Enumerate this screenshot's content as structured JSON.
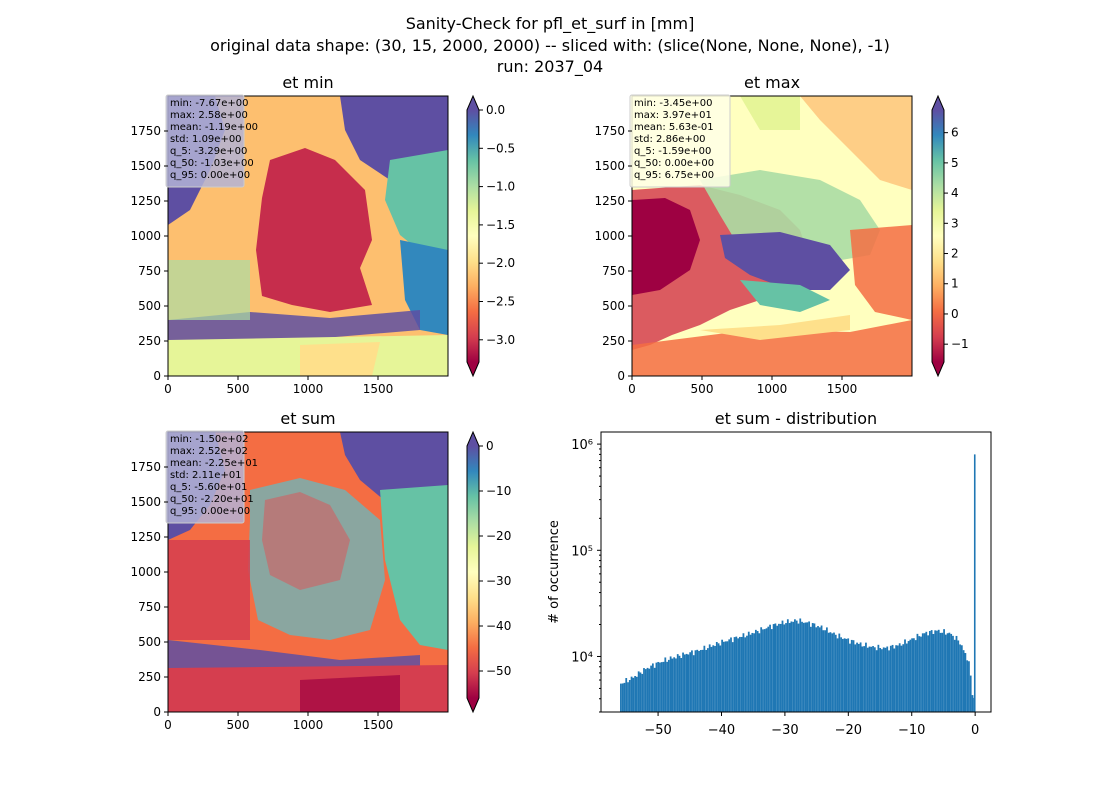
{
  "figure": {
    "title_lines": [
      "Sanity-Check for pfl_et_surf in [mm]",
      "original data shape: (30, 15, 2000, 2000) -- sliced with: (slice(None, None, None), -1)",
      "run: 2037_04"
    ]
  },
  "chart_data": [
    {
      "type": "heatmap",
      "title": "et min",
      "xlim": [
        0,
        2000
      ],
      "ylim": [
        0,
        2000
      ],
      "xticks": [
        0,
        500,
        1000,
        1500
      ],
      "yticks": [
        0,
        250,
        500,
        750,
        1000,
        1250,
        1500,
        1750
      ],
      "colormap": "Spectral",
      "colorbar_range": [
        -3.29,
        0.0
      ],
      "colorbar_ticks": [
        "0.0",
        "−0.5",
        "−1.0",
        "−1.5",
        "−2.0",
        "−2.5",
        "−3.0"
      ],
      "colorbar_tick_values": [
        0.0,
        -0.5,
        -1.0,
        -1.5,
        -2.0,
        -2.5,
        -3.0
      ],
      "stats": [
        "min: -7.67e+00",
        "max: 2.58e+00",
        "mean: -1.19e+00",
        "std: 1.09e+00",
        "q_5: -3.29e+00",
        "q_50: -1.03e+00",
        "q_95: 0.00e+00"
      ]
    },
    {
      "type": "heatmap",
      "title": "et max",
      "xlim": [
        0,
        2000
      ],
      "ylim": [
        0,
        2000
      ],
      "xticks": [
        0,
        500,
        1000,
        1500
      ],
      "yticks": [
        0,
        250,
        500,
        750,
        1000,
        1250,
        1500,
        1750
      ],
      "colormap": "Spectral",
      "colorbar_range": [
        -1.59,
        6.75
      ],
      "colorbar_ticks": [
        "6",
        "5",
        "4",
        "3",
        "2",
        "1",
        "0",
        "−1"
      ],
      "colorbar_tick_values": [
        6,
        5,
        4,
        3,
        2,
        1,
        0,
        -1
      ],
      "stats": [
        "min: -3.45e+00",
        "max: 3.97e+01",
        "mean: 5.63e-01",
        "std: 2.86e+00",
        "q_5: -1.59e+00",
        "q_50: 0.00e+00",
        "q_95: 6.75e+00"
      ]
    },
    {
      "type": "heatmap",
      "title": "et sum",
      "xlim": [
        0,
        2000
      ],
      "ylim": [
        0,
        2000
      ],
      "xticks": [
        0,
        500,
        1000,
        1500
      ],
      "yticks": [
        0,
        250,
        500,
        750,
        1000,
        1250,
        1500,
        1750
      ],
      "colormap": "Spectral",
      "colorbar_range": [
        -56.0,
        0.0
      ],
      "colorbar_ticks": [
        "0",
        "−10",
        "−20",
        "−30",
        "−40",
        "−50"
      ],
      "colorbar_tick_values": [
        0,
        -10,
        -20,
        -30,
        -40,
        -50
      ],
      "stats": [
        "min: -1.50e+02",
        "max: 2.52e+02",
        "mean: -2.25e+01",
        "std: 2.11e+01",
        "q_5: -5.60e+01",
        "q_50: -2.20e+01",
        "q_95: 0.00e+00"
      ]
    },
    {
      "type": "bar",
      "title": "et sum - distribution",
      "xlabel": "",
      "ylabel": "# of occurrence",
      "yscale": "log",
      "xlim": [
        -59,
        2.5
      ],
      "ylim": [
        3000,
        1300000
      ],
      "xticks": [
        -50,
        -40,
        -30,
        -20,
        -10,
        0
      ],
      "xtick_labels": [
        "−50",
        "−40",
        "−30",
        "−20",
        "−10",
        "0"
      ],
      "yticks": [
        10000,
        100000,
        1000000
      ],
      "ytick_labels": [
        "10⁴",
        "10⁵",
        "10⁶"
      ],
      "bin_range": [
        -56.0,
        0.0
      ],
      "bin_count": 200,
      "profile": [
        {
          "x": -56.0,
          "y": 5500
        },
        {
          "x": -54.0,
          "y": 6300
        },
        {
          "x": -52.0,
          "y": 7600
        },
        {
          "x": -50.0,
          "y": 8700
        },
        {
          "x": -48.0,
          "y": 9600
        },
        {
          "x": -46.0,
          "y": 10400
        },
        {
          "x": -44.0,
          "y": 11200
        },
        {
          "x": -42.0,
          "y": 12300
        },
        {
          "x": -40.0,
          "y": 13600
        },
        {
          "x": -38.0,
          "y": 14800
        },
        {
          "x": -36.0,
          "y": 16000
        },
        {
          "x": -34.0,
          "y": 17600
        },
        {
          "x": -32.0,
          "y": 19500
        },
        {
          "x": -30.0,
          "y": 21000
        },
        {
          "x": -28.0,
          "y": 21800
        },
        {
          "x": -26.0,
          "y": 20500
        },
        {
          "x": -24.0,
          "y": 18500
        },
        {
          "x": -22.0,
          "y": 16000
        },
        {
          "x": -20.0,
          "y": 14300
        },
        {
          "x": -18.0,
          "y": 13000
        },
        {
          "x": -16.0,
          "y": 12200
        },
        {
          "x": -14.0,
          "y": 12000
        },
        {
          "x": -12.0,
          "y": 12800
        },
        {
          "x": -10.0,
          "y": 14500
        },
        {
          "x": -8.0,
          "y": 16500
        },
        {
          "x": -6.0,
          "y": 17500
        },
        {
          "x": -4.0,
          "y": 16500
        },
        {
          "x": -2.5,
          "y": 14000
        },
        {
          "x": -1.0,
          "y": 9000
        },
        {
          "x": -0.3,
          "y": 4000
        }
      ],
      "spike": {
        "x": 0.0,
        "y": 800000
      }
    }
  ]
}
